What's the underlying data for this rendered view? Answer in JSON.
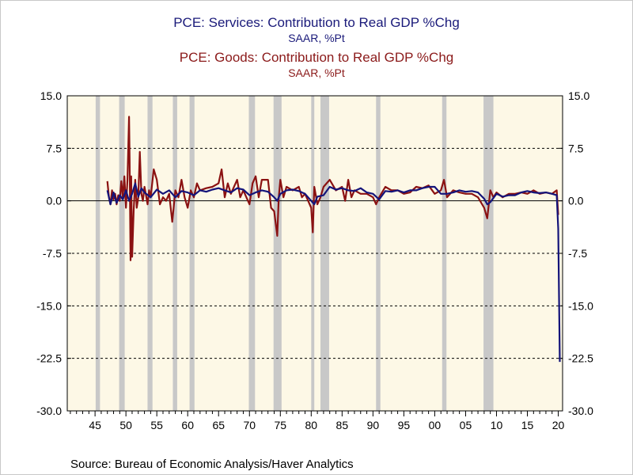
{
  "header": {
    "title1": "PCE: Services: Contribution to Real GDP %Chg",
    "subtitle1": "SAAR, %Pt",
    "title2": "PCE: Goods: Contribution to Real GDP %Chg",
    "subtitle2": "SAAR, %Pt"
  },
  "footer": {
    "source": "Source:  Bureau of Economic Analysis/Haver Analytics"
  },
  "colors": {
    "services": "#14147a",
    "goods": "#8b1212",
    "background": "#fdf8e6",
    "recession": "#c8c8c8"
  },
  "chart_data": {
    "type": "line",
    "title": "PCE: Services: Contribution to Real GDP %Chg / PCE: Goods: Contribution to Real GDP %Chg",
    "ylim": [
      -30,
      15
    ],
    "xlim": [
      1940.5,
      2020.7
    ],
    "y_ticks": [
      "15.0",
      "7.5",
      "0.0",
      "-7.5",
      "-15.0",
      "-22.5",
      "-30.0"
    ],
    "x_ticks": [
      "45",
      "50",
      "55",
      "60",
      "65",
      "70",
      "75",
      "80",
      "85",
      "90",
      "95",
      "00",
      "05",
      "10",
      "15",
      "20"
    ],
    "grid": "horizontal dashed",
    "recessions": [
      [
        1945.1,
        1945.8
      ],
      [
        1948.9,
        1949.8
      ],
      [
        1953.5,
        1954.3
      ],
      [
        1957.6,
        1958.3
      ],
      [
        1960.3,
        1961.1
      ],
      [
        1969.9,
        1970.9
      ],
      [
        1973.9,
        1975.2
      ],
      [
        1980.0,
        1980.5
      ],
      [
        1981.5,
        1982.9
      ],
      [
        1990.5,
        1991.2
      ],
      [
        2001.2,
        2001.9
      ],
      [
        2007.9,
        2009.5
      ]
    ],
    "series": [
      {
        "name": "PCE: Services: Contribution to Real GDP %Chg",
        "x": [
          1947.0,
          1947.5,
          1948.0,
          1948.5,
          1949.0,
          1949.5,
          1950.0,
          1950.5,
          1951.0,
          1951.5,
          1952.0,
          1952.5,
          1953.0,
          1954.0,
          1955.0,
          1956.0,
          1957.0,
          1958.0,
          1959.0,
          1960.0,
          1961.0,
          1962.0,
          1963.0,
          1964.0,
          1965.0,
          1966.0,
          1967.0,
          1968.0,
          1969.0,
          1970.0,
          1971.0,
          1972.0,
          1973.0,
          1974.0,
          1974.5,
          1975.0,
          1976.0,
          1977.0,
          1978.0,
          1979.0,
          1980.0,
          1980.5,
          1981.0,
          1982.0,
          1983.0,
          1984.0,
          1985.0,
          1986.0,
          1987.0,
          1988.0,
          1989.0,
          1990.0,
          1991.0,
          1992.0,
          1993.0,
          1994.0,
          1995.0,
          1996.0,
          1997.0,
          1998.0,
          1999.0,
          2000.0,
          2001.0,
          2002.0,
          2003.0,
          2004.0,
          2005.0,
          2006.0,
          2007.0,
          2008.0,
          2008.5,
          2009.0,
          2010.0,
          2011.0,
          2012.0,
          2013.0,
          2014.0,
          2015.0,
          2016.0,
          2017.0,
          2018.0,
          2019.0,
          2019.75,
          2020.0,
          2020.25
        ],
        "values": [
          1.5,
          -0.5,
          1.2,
          -0.3,
          0.8,
          0.2,
          1.5,
          0.0,
          1.0,
          2.5,
          0.6,
          1.8,
          1.2,
          0.5,
          1.6,
          1.0,
          1.5,
          0.5,
          1.4,
          1.2,
          0.8,
          1.5,
          1.3,
          1.6,
          1.8,
          1.5,
          1.2,
          1.8,
          1.6,
          0.8,
          1.2,
          1.5,
          1.3,
          0.5,
          0.0,
          1.0,
          1.5,
          1.6,
          1.4,
          1.0,
          0.0,
          -0.5,
          0.6,
          0.8,
          2.0,
          1.6,
          1.8,
          1.5,
          1.4,
          1.8,
          1.2,
          1.0,
          0.2,
          1.4,
          1.3,
          1.5,
          1.2,
          1.5,
          1.5,
          1.8,
          2.0,
          2.0,
          1.0,
          1.0,
          1.2,
          1.5,
          1.3,
          1.4,
          1.2,
          0.3,
          -0.5,
          -0.2,
          1.0,
          0.6,
          0.8,
          0.8,
          1.2,
          1.4,
          1.2,
          1.1,
          1.2,
          1.0,
          0.8,
          -4.0,
          -23.0
        ]
      },
      {
        "name": "PCE: Goods: Contribution to Real GDP %Chg",
        "x": [
          1947.0,
          1947.25,
          1947.5,
          1947.75,
          1948.0,
          1948.25,
          1948.5,
          1948.75,
          1949.0,
          1949.25,
          1949.5,
          1949.75,
          1950.0,
          1950.25,
          1950.5,
          1950.6,
          1950.75,
          1950.85,
          1951.0,
          1951.25,
          1951.5,
          1951.75,
          1952.0,
          1952.25,
          1952.5,
          1952.75,
          1953.0,
          1953.25,
          1953.5,
          1953.75,
          1954.0,
          1954.5,
          1955.0,
          1955.5,
          1956.0,
          1956.5,
          1957.0,
          1957.5,
          1958.0,
          1958.5,
          1959.0,
          1959.5,
          1960.0,
          1960.5,
          1961.0,
          1961.5,
          1962.0,
          1963.0,
          1964.0,
          1965.0,
          1965.5,
          1966.0,
          1966.5,
          1967.0,
          1968.0,
          1968.5,
          1969.0,
          1970.0,
          1970.5,
          1971.0,
          1971.5,
          1972.0,
          1973.0,
          1973.5,
          1974.0,
          1974.5,
          1974.75,
          1975.0,
          1975.5,
          1976.0,
          1977.0,
          1978.0,
          1978.5,
          1979.0,
          1980.0,
          1980.25,
          1980.5,
          1981.0,
          1981.5,
          1982.0,
          1983.0,
          1984.0,
          1985.0,
          1985.5,
          1986.0,
          1986.5,
          1987.0,
          1988.0,
          1989.0,
          1990.0,
          1990.5,
          1991.0,
          1992.0,
          1993.0,
          1994.0,
          1995.0,
          1996.0,
          1997.0,
          1998.0,
          1999.0,
          2000.0,
          2001.0,
          2001.5,
          2002.0,
          2003.0,
          2004.0,
          2005.0,
          2006.0,
          2007.0,
          2008.0,
          2008.5,
          2009.0,
          2009.5,
          2010.0,
          2011.0,
          2012.0,
          2013.0,
          2014.0,
          2015.0,
          2016.0,
          2017.0,
          2018.0,
          2019.0,
          2019.75,
          2020.0
        ],
        "values": [
          2.8,
          0.5,
          -0.5,
          1.5,
          0.2,
          1.0,
          -0.5,
          0.8,
          0.0,
          2.8,
          0.5,
          3.5,
          -1.0,
          3.0,
          12.0,
          6.0,
          -8.5,
          3.5,
          -8.0,
          -1.5,
          3.0,
          -1.0,
          0.5,
          7.0,
          1.0,
          0.0,
          2.0,
          0.8,
          -0.5,
          1.5,
          0.5,
          4.5,
          3.0,
          -0.5,
          0.5,
          0.0,
          1.0,
          -3.0,
          1.5,
          0.5,
          3.0,
          0.5,
          -1.0,
          1.5,
          0.5,
          2.5,
          1.5,
          1.8,
          2.0,
          2.5,
          4.5,
          0.5,
          2.5,
          1.0,
          3.0,
          0.5,
          1.5,
          -0.5,
          2.5,
          3.5,
          0.5,
          3.0,
          3.0,
          -1.0,
          -1.5,
          -5.0,
          0.5,
          3.0,
          0.5,
          2.0,
          1.5,
          2.0,
          0.5,
          1.0,
          -1.0,
          -4.5,
          2.0,
          -0.5,
          0.5,
          2.0,
          3.0,
          1.5,
          2.0,
          0.0,
          3.0,
          0.5,
          1.5,
          1.0,
          1.0,
          0.5,
          -0.5,
          0.5,
          2.0,
          1.5,
          1.5,
          1.0,
          1.2,
          2.0,
          1.8,
          2.2,
          1.0,
          1.5,
          3.0,
          0.5,
          1.5,
          1.2,
          1.0,
          1.0,
          0.5,
          -1.0,
          -2.5,
          1.5,
          0.5,
          1.2,
          0.5,
          1.0,
          1.0,
          1.2,
          1.0,
          1.5,
          1.0,
          1.2,
          1.0,
          1.5,
          -2.0
        ]
      }
    ]
  }
}
